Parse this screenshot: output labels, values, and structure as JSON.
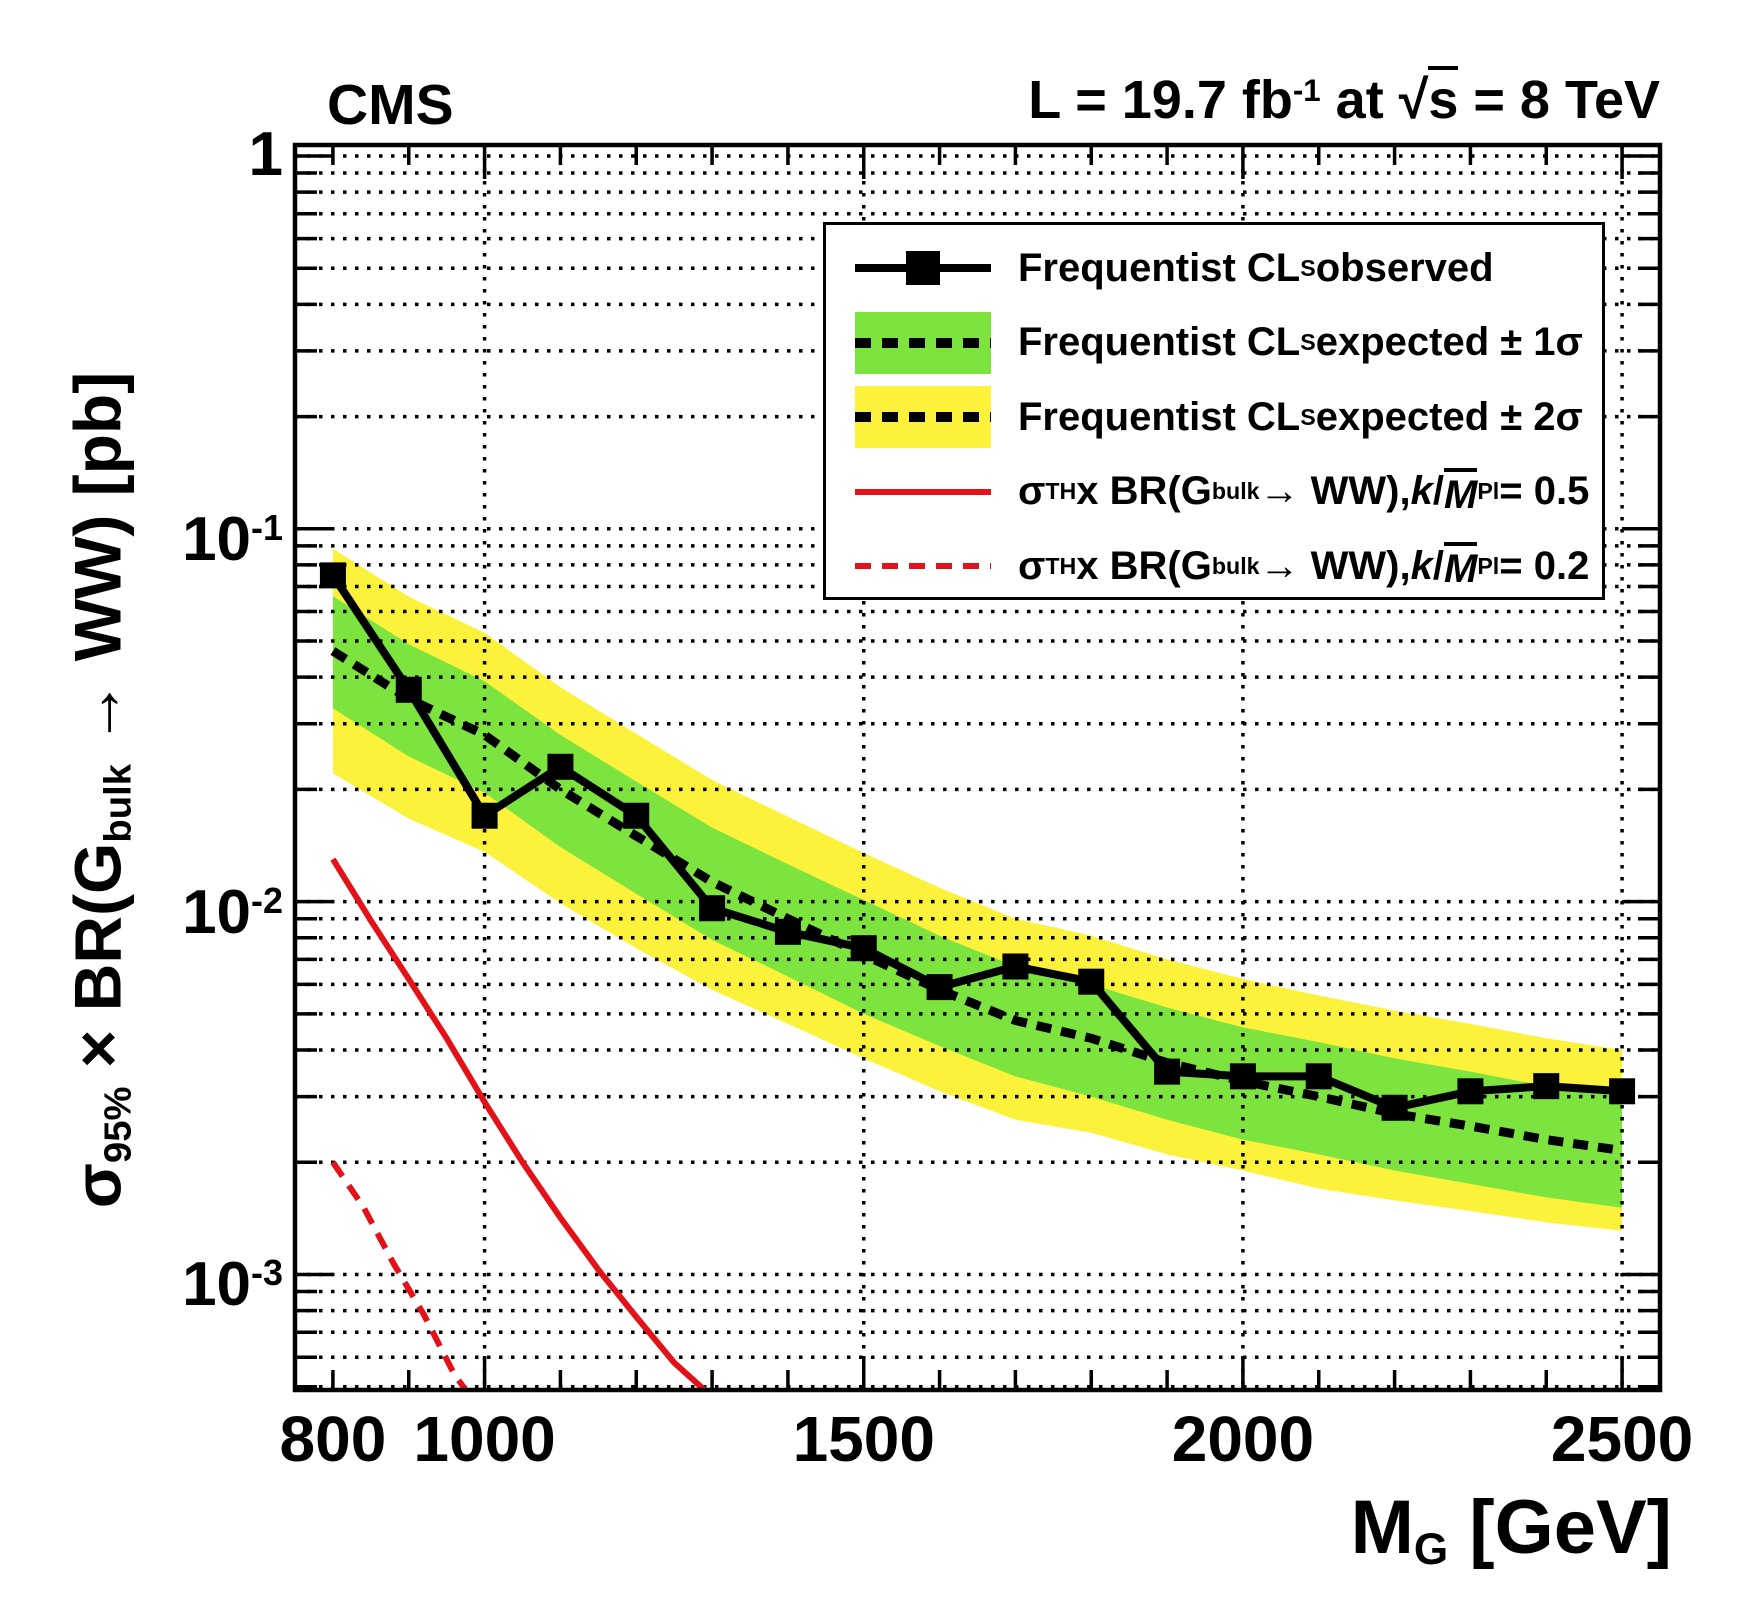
{
  "header": {
    "experiment": "CMS",
    "lumi_rich": [
      {
        "t": "L = 19.7 fb"
      },
      {
        "t": "-1",
        "s": "sup"
      },
      {
        "t": " at  "
      },
      {
        "t": "√"
      },
      {
        "t": "s",
        "o": 1
      },
      {
        "t": " = 8 TeV"
      }
    ]
  },
  "axes": {
    "x": {
      "title_rich": [
        {
          "t": "M"
        },
        {
          "t": "G",
          "s": "sub"
        },
        {
          "t": " [GeV]"
        }
      ],
      "min": 750,
      "max": 2550,
      "labeled_ticks": [
        800,
        1000,
        1500,
        2000,
        2500
      ],
      "tick_labels": [
        "800",
        "1000",
        "1500",
        "2000",
        "2500"
      ],
      "minor_step": 100,
      "major_ticks": [
        1000,
        1500,
        2000,
        2500
      ],
      "gridlines": [
        1000,
        1500,
        2000,
        2500
      ]
    },
    "y": {
      "title_rich": [
        {
          "t": "σ"
        },
        {
          "t": "95%",
          "s": "sub"
        },
        {
          "t": " × BR(G"
        },
        {
          "t": "bulk",
          "s": "sub"
        },
        {
          "t": " → WW) [pb]"
        }
      ],
      "log": true,
      "min": 0.00049,
      "max": 1.07,
      "labels": [
        {
          "v": 1,
          "rich": [
            {
              "t": "1"
            }
          ]
        },
        {
          "v": 0.1,
          "rich": [
            {
              "t": "10"
            },
            {
              "t": "-1",
              "s": "sup"
            }
          ]
        },
        {
          "v": 0.01,
          "rich": [
            {
              "t": "10"
            },
            {
              "t": "-2",
              "s": "sup"
            }
          ]
        },
        {
          "v": 0.001,
          "rich": [
            {
              "t": "10"
            },
            {
              "t": "-3",
              "s": "sup"
            }
          ]
        }
      ]
    }
  },
  "legend": {
    "entries": [
      {
        "type": "observed",
        "label_rich": [
          {
            "t": "Frequentist CL"
          },
          {
            "t": "S",
            "s": "sub"
          },
          {
            "t": " observed"
          }
        ]
      },
      {
        "type": "band1",
        "label_rich": [
          {
            "t": "Frequentist CL"
          },
          {
            "t": "S",
            "s": "sub"
          },
          {
            "t": " expected ± 1σ"
          }
        ]
      },
      {
        "type": "band2",
        "label_rich": [
          {
            "t": "Frequentist CL"
          },
          {
            "t": "S",
            "s": "sub"
          },
          {
            "t": " expected ± 2σ"
          }
        ]
      },
      {
        "type": "red-solid",
        "label_rich": [
          {
            "t": "σ"
          },
          {
            "t": "TH",
            "s": "sub"
          },
          {
            "t": " x BR(G"
          },
          {
            "t": "bulk",
            "s": "sub"
          },
          {
            "t": " → WW), "
          },
          {
            "t": "k",
            "i": 1
          },
          {
            "t": "/"
          },
          {
            "t": "M",
            "i": 1,
            "o": 1
          },
          {
            "t": "Pl",
            "s": "sub"
          },
          {
            "t": " = 0.5"
          }
        ]
      },
      {
        "type": "red-dashed",
        "label_rich": [
          {
            "t": "σ"
          },
          {
            "t": "TH",
            "s": "sub"
          },
          {
            "t": " x BR(G"
          },
          {
            "t": "bulk",
            "s": "sub"
          },
          {
            "t": " → WW), "
          },
          {
            "t": "k",
            "i": 1
          },
          {
            "t": "/"
          },
          {
            "t": "M",
            "i": 1,
            "o": 1
          },
          {
            "t": "Pl",
            "s": "sub"
          },
          {
            "t": " = 0.2"
          }
        ]
      }
    ]
  },
  "colors": {
    "green_band": "#7de33e",
    "yellow_band": "#fdf23b",
    "theory_red": "#e31219",
    "line_black": "#000000",
    "background": "#ffffff"
  },
  "chart_data": {
    "type": "line",
    "title": "",
    "xlabel": "M_G [GeV]",
    "ylabel": "sigma_95% x BR(G_bulk -> WW) [pb]",
    "x_range": [
      750,
      2550
    ],
    "y_range": [
      0.00049,
      1.07
    ],
    "y_log": true,
    "grid": "dotted, decades plus log minors horizontally; verticals at 1000/1500/2000/2500",
    "legend_position": "top-right",
    "x_gev": [
      800,
      900,
      1000,
      1100,
      1200,
      1300,
      1400,
      1500,
      1600,
      1700,
      1800,
      1900,
      2000,
      2100,
      2200,
      2300,
      2400,
      2500
    ],
    "series": [
      {
        "name": "observed_cls_pb",
        "values": [
          0.075,
          0.037,
          0.017,
          0.023,
          0.017,
          0.0096,
          0.0083,
          0.0075,
          0.0059,
          0.0067,
          0.0061,
          0.0035,
          0.0034,
          0.0034,
          0.0028,
          0.0031,
          0.0032,
          0.0031
        ]
      },
      {
        "name": "expected_cls_pb",
        "values": [
          0.047,
          0.035,
          0.028,
          0.02,
          0.015,
          0.0113,
          0.009,
          0.0072,
          0.0058,
          0.0048,
          0.0043,
          0.0037,
          0.0033,
          0.003,
          0.0027,
          0.0025,
          0.0023,
          0.00215
        ]
      },
      {
        "name": "expected_plus1sigma",
        "values": [
          0.066,
          0.049,
          0.039,
          0.028,
          0.021,
          0.0158,
          0.0126,
          0.0101,
          0.0081,
          0.0067,
          0.006,
          0.0052,
          0.0046,
          0.0042,
          0.0038,
          0.0035,
          0.0032,
          0.003
        ]
      },
      {
        "name": "expected_minus1sigma",
        "values": [
          0.033,
          0.0245,
          0.0196,
          0.014,
          0.0105,
          0.0079,
          0.0063,
          0.005,
          0.0041,
          0.0034,
          0.003,
          0.0026,
          0.0023,
          0.0021,
          0.0019,
          0.00175,
          0.00161,
          0.00151
        ]
      },
      {
        "name": "expected_plus2sigma",
        "values": [
          0.0884,
          0.0658,
          0.0526,
          0.0376,
          0.0282,
          0.0212,
          0.0169,
          0.0135,
          0.0109,
          0.009,
          0.0081,
          0.007,
          0.0062,
          0.0056,
          0.0051,
          0.0047,
          0.0043,
          0.004
        ]
      },
      {
        "name": "expected_minus2sigma",
        "values": [
          0.0221,
          0.0167,
          0.0136,
          0.0099,
          0.0075,
          0.0058,
          0.0047,
          0.0038,
          0.0031,
          0.0026,
          0.0024,
          0.0021,
          0.0019,
          0.0017,
          0.00158,
          0.00148,
          0.00138,
          0.00131
        ]
      }
    ],
    "theory_k05": {
      "x_gev": [
        800,
        850,
        900,
        950,
        1000,
        1050,
        1100,
        1150,
        1200,
        1250,
        1290
      ],
      "values": [
        0.013,
        0.0089,
        0.0062,
        0.0043,
        0.0029,
        0.002,
        0.00142,
        0.00103,
        0.00077,
        0.00058,
        0.00049
      ]
    },
    "theory_k02": {
      "x_gev": [
        800,
        840,
        880,
        920,
        960,
        975
      ],
      "values": [
        0.002,
        0.00152,
        0.00107,
        0.00078,
        0.00054,
        0.00049
      ]
    }
  }
}
